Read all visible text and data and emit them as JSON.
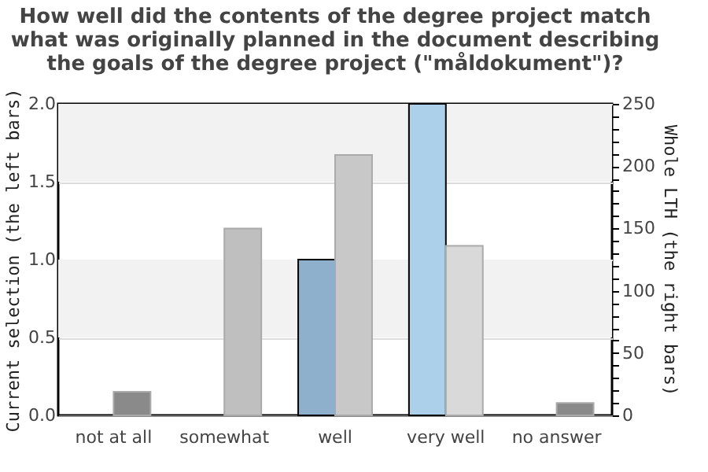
{
  "chart_data": {
    "type": "bar",
    "title": "How well did the contents of the degree project match\nwhat was originally planned in the document describing\nthe goals of the degree project (\"måldokument\")?",
    "categories": [
      "not at all",
      "somewhat",
      "well",
      "very well",
      "no answer"
    ],
    "ylabel": "Current selection (the left bars)",
    "y2label": "Whole LTH (the right bars)",
    "series": [
      {
        "axis": "y",
        "values": [
          null,
          null,
          1.0,
          2.0,
          null
        ],
        "colors": [
          "#8fb0cc",
          "#8fb0cc",
          "#8fb0cc",
          "#acd0ea",
          "#acd0ea"
        ]
      },
      {
        "axis": "y2",
        "values": [
          19,
          150,
          209,
          136,
          10
        ],
        "colors": [
          "#8a8a8a",
          "#bfbfbf",
          "#c8c8c8",
          "#d9d9d9",
          "#8a8a8a"
        ]
      }
    ],
    "ylim": [
      0,
      2
    ],
    "yticks": [
      {
        "value": 0,
        "label": "0.0"
      },
      {
        "value": 0.5,
        "label": "0.5"
      },
      {
        "value": 1,
        "label": "1.0"
      },
      {
        "value": 1.5,
        "label": "1.5"
      },
      {
        "value": 2,
        "label": "2.0"
      }
    ],
    "y2lim": [
      0,
      250
    ],
    "y2ticks": [
      0,
      {
        "value": 10,
        "label": null
      },
      {
        "value": 20,
        "label": null
      },
      {
        "value": 30,
        "label": null
      },
      {
        "value": 40,
        "label": null
      },
      50,
      {
        "value": 60,
        "label": null
      },
      {
        "value": 70,
        "label": null
      },
      {
        "value": 80,
        "label": null
      },
      {
        "value": 90,
        "label": null
      },
      100,
      {
        "value": 110,
        "label": null
      },
      {
        "value": 120,
        "label": null
      },
      {
        "value": 130,
        "label": null
      },
      {
        "value": 140,
        "label": null
      },
      150,
      {
        "value": 160,
        "label": null
      },
      {
        "value": 170,
        "label": null
      },
      {
        "value": 180,
        "label": null
      },
      {
        "value": 190,
        "label": null
      },
      200,
      {
        "value": 210,
        "label": null
      },
      {
        "value": 220,
        "label": null
      },
      {
        "value": 230,
        "label": null
      },
      {
        "value": 240,
        "label": null
      },
      250
    ],
    "grid": "y",
    "bands": [
      {
        "axis": "y",
        "from": 0.5,
        "to": 1.0,
        "color": "#f2f2f2"
      },
      {
        "axis": "y",
        "from": 1.5,
        "to": 2.0,
        "color": "#f2f2f2"
      }
    ]
  }
}
